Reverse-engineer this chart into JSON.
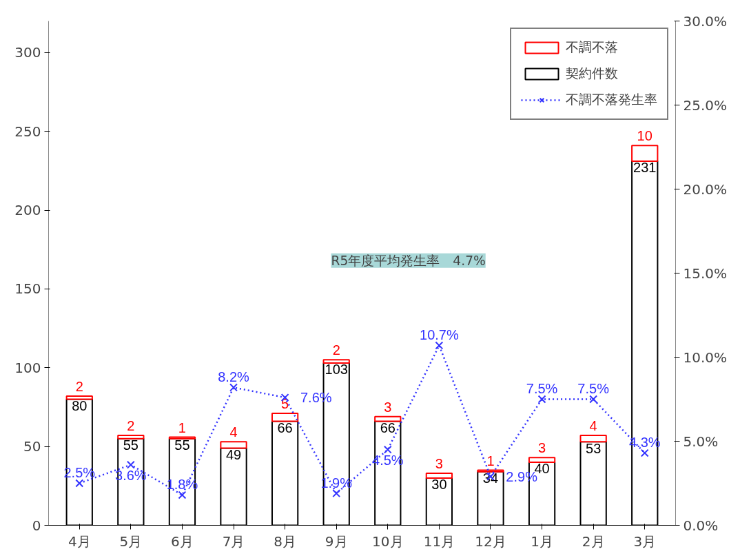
{
  "chart_data": {
    "type": "bar",
    "stacked": true,
    "categories": [
      "4月",
      "5月",
      "6月",
      "7月",
      "8月",
      "9月",
      "10月",
      "11月",
      "12月",
      "1月",
      "2月",
      "3月"
    ],
    "series": [
      {
        "name": "契約件数",
        "color": "#000000",
        "values": [
          80,
          55,
          55,
          49,
          66,
          103,
          66,
          30,
          34,
          40,
          53,
          231
        ],
        "value_labels": [
          "80",
          "55",
          "55",
          "49",
          "66",
          "103",
          "66",
          "30",
          "34",
          "40",
          "53",
          "231"
        ]
      },
      {
        "name": "不調不落",
        "color": "#ff0000",
        "values": [
          2,
          2,
          1,
          4,
          5,
          2,
          3,
          3,
          1,
          3,
          4,
          10
        ],
        "value_labels": [
          "2",
          "2",
          "1",
          "4",
          "5",
          "2",
          "3",
          "3",
          "1",
          "3",
          "4",
          "10"
        ]
      },
      {
        "name": "不調不落発生率",
        "type": "line",
        "axis": "y2",
        "color": "#3333ff",
        "line_style": "dotted",
        "marker": "cross",
        "values": [
          2.5,
          3.6,
          1.8,
          8.2,
          7.6,
          1.9,
          4.5,
          10.7,
          2.9,
          7.5,
          7.5,
          4.3
        ],
        "value_labels": [
          "2.5%",
          "3.6%",
          "1.8%",
          "8.2%",
          "7.6%",
          "1.9%",
          "4.5%",
          "10.7%",
          "2.9%",
          "7.5%",
          "7.5%",
          "4.3%"
        ]
      }
    ],
    "ylim": [
      0,
      320
    ],
    "yticks": [
      0,
      50,
      100,
      150,
      200,
      250,
      300
    ],
    "y2lim": [
      0,
      30
    ],
    "y2ticks": [
      {
        "value": 0,
        "label": "0.0%"
      },
      {
        "value": 5,
        "label": "5.0%"
      },
      {
        "value": 10,
        "label": "10.0%"
      },
      {
        "value": 15,
        "label": "15.0%"
      },
      {
        "value": 20,
        "label": "20.0%"
      },
      {
        "value": 25,
        "label": "25.0%"
      },
      {
        "value": 30,
        "label": "30.0%"
      }
    ],
    "annotations": [
      "R5年度平均発生率　4.7%"
    ],
    "grid": false,
    "legend": "top right"
  }
}
